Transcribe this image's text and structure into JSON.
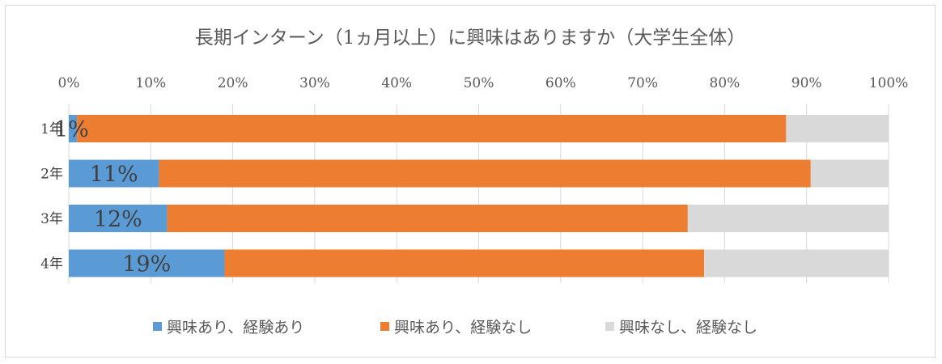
{
  "chart_data": {
    "type": "bar",
    "orientation": "horizontal",
    "stacked": "percent",
    "title": "長期インターン（1ヵ月以上）に興味はありますか（大学生全体）",
    "xlabel": "",
    "ylabel": "",
    "xlim": [
      0,
      100
    ],
    "x_ticks": [
      "0%",
      "10%",
      "20%",
      "30%",
      "40%",
      "50%",
      "60%",
      "70%",
      "80%",
      "90%",
      "100%"
    ],
    "categories": [
      "1年",
      "2年",
      "3年",
      "4年"
    ],
    "series": [
      {
        "name": "興味あり、経験あり",
        "color": "#5b9bd5",
        "values": [
          1,
          11,
          12,
          19
        ],
        "data_labels": [
          "1%",
          "11%",
          "12%",
          "19%"
        ]
      },
      {
        "name": "興味あり、経験なし",
        "color": "#ed7d31",
        "values": [
          86.5,
          79.5,
          63.5,
          58.5
        ]
      },
      {
        "name": "興味なし、経験なし",
        "color": "#d9d9d9",
        "values": [
          12.5,
          9.5,
          24.5,
          22.5
        ]
      }
    ],
    "grid": true,
    "legend_position": "bottom"
  }
}
